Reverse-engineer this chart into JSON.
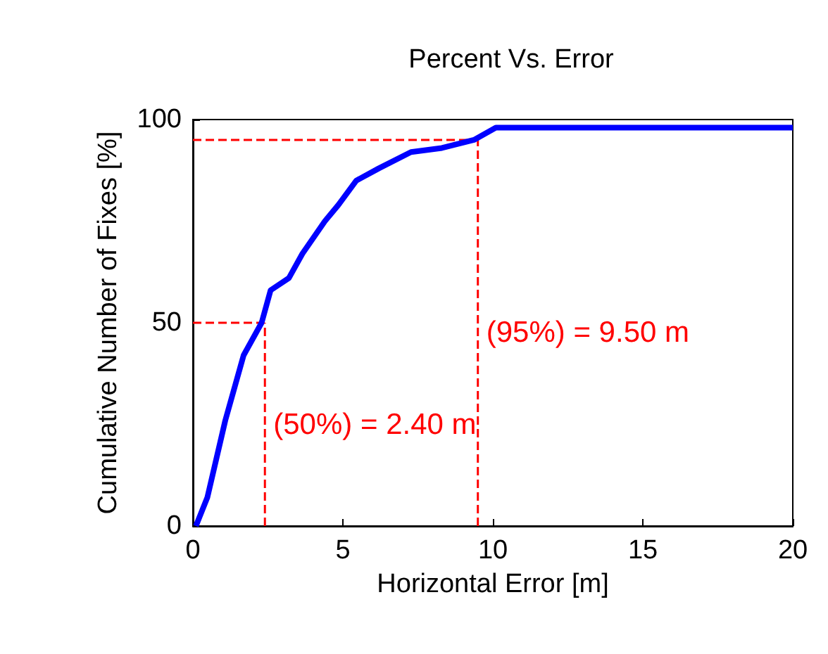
{
  "chart_data": {
    "type": "line",
    "title": "Percent Vs. Error",
    "xlabel": "Horizontal Error [m]",
    "ylabel": "Cumulative Number of Fixes [%]",
    "x": [
      0.1,
      0.48,
      1.08,
      1.69,
      2.29,
      2.59,
      3.2,
      3.65,
      4.4,
      4.85,
      5.45,
      6.2,
      7.27,
      8.3,
      9.37,
      10.1,
      20
    ],
    "series": [
      {
        "color": "#0000ff",
        "values": [
          0,
          7,
          26,
          42,
          50,
          58,
          61,
          67,
          75,
          79,
          85,
          88,
          92,
          93,
          95,
          98,
          98
        ]
      }
    ],
    "xlim": [
      0,
      20
    ],
    "xticks": [
      0,
      5,
      10,
      15,
      20
    ],
    "ylim": [
      0,
      100
    ],
    "yticks": [
      0,
      50,
      100
    ],
    "grid": false,
    "ref_lines": [
      {
        "axis": "y",
        "value": 50,
        "label": null,
        "color": "#ff0000",
        "line_style": "dashed"
      },
      {
        "axis": "x",
        "value": 2.4,
        "label": "(50%) = 2.40 m",
        "color": "#ff0000",
        "line_style": "dashed"
      },
      {
        "axis": "y",
        "value": 95,
        "label": null,
        "color": "#ff0000",
        "line_style": "dashed"
      },
      {
        "axis": "x",
        "value": 9.5,
        "label": "(95%) = 9.50 m",
        "color": "#ff0000",
        "line_style": "dashed"
      }
    ]
  }
}
